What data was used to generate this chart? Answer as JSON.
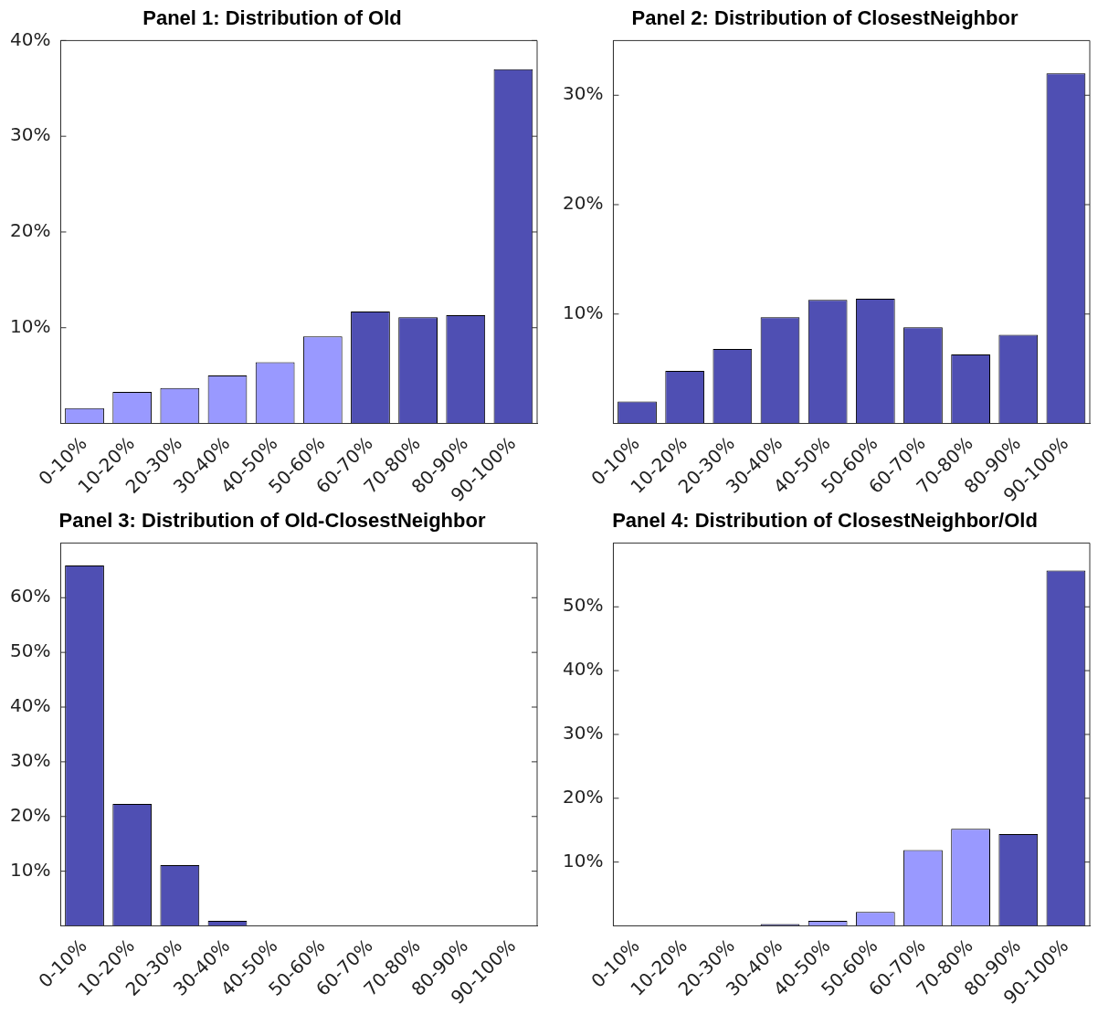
{
  "chart_data": [
    {
      "type": "bar",
      "title": "Panel 1: Distribution of Old",
      "categories": [
        "0-10%",
        "10-20%",
        "20-30%",
        "30-40%",
        "40-50%",
        "50-60%",
        "60-70%",
        "70-80%",
        "80-90%",
        "90-100%"
      ],
      "values": [
        1.6,
        3.3,
        3.7,
        5.0,
        6.4,
        9.1,
        11.7,
        11.1,
        11.3,
        37.0
      ],
      "colors": [
        "#9999ff",
        "#9999ff",
        "#9999ff",
        "#9999ff",
        "#9999ff",
        "#9999ff",
        "#4f4fb3",
        "#4f4fb3",
        "#4f4fb3",
        "#4f4fb3"
      ],
      "ylim": [
        0,
        40
      ],
      "yticks": [
        {
          "value": 10,
          "label": "10%"
        },
        {
          "value": 20,
          "label": "20%"
        },
        {
          "value": 30,
          "label": "30%"
        },
        {
          "value": 40,
          "label": "40%"
        }
      ]
    },
    {
      "type": "bar",
      "title": "Panel 2: Distribution of ClosestNeighbor",
      "categories": [
        "0-10%",
        "10-20%",
        "20-30%",
        "30-40%",
        "40-50%",
        "50-60%",
        "60-70%",
        "70-80%",
        "80-90%",
        "90-100%"
      ],
      "values": [
        2.0,
        4.8,
        6.8,
        9.7,
        11.3,
        11.4,
        8.8,
        6.3,
        8.1,
        32.0
      ],
      "colors": [
        "#4f4fb3",
        "#4f4fb3",
        "#4f4fb3",
        "#4f4fb3",
        "#4f4fb3",
        "#4f4fb3",
        "#4f4fb3",
        "#4f4fb3",
        "#4f4fb3",
        "#4f4fb3"
      ],
      "ylim": [
        0,
        35
      ],
      "yticks": [
        {
          "value": 10,
          "label": "10%"
        },
        {
          "value": 20,
          "label": "20%"
        },
        {
          "value": 30,
          "label": "30%"
        }
      ]
    },
    {
      "type": "bar",
      "title": "Panel 3: Distribution of Old-ClosestNeighbor",
      "categories": [
        "0-10%",
        "10-20%",
        "20-30%",
        "30-40%",
        "40-50%",
        "50-60%",
        "60-70%",
        "70-80%",
        "80-90%",
        "90-100%"
      ],
      "values": [
        65.9,
        22.3,
        11.1,
        0.9,
        0,
        0,
        0,
        0,
        0,
        0
      ],
      "colors": [
        "#4f4fb3",
        "#4f4fb3",
        "#4f4fb3",
        "#4f4fb3",
        "#4f4fb3",
        "#4f4fb3",
        "#4f4fb3",
        "#4f4fb3",
        "#4f4fb3",
        "#4f4fb3"
      ],
      "ylim": [
        0,
        70
      ],
      "yticks": [
        {
          "value": 10,
          "label": "10%"
        },
        {
          "value": 20,
          "label": "20%"
        },
        {
          "value": 30,
          "label": "30%"
        },
        {
          "value": 40,
          "label": "40%"
        },
        {
          "value": 50,
          "label": "50%"
        },
        {
          "value": 60,
          "label": "60%"
        }
      ]
    },
    {
      "type": "bar",
      "title": "Panel 4: Distribution of ClosestNeighbor/Old",
      "categories": [
        "0-10%",
        "10-20%",
        "20-30%",
        "30-40%",
        "40-50%",
        "50-60%",
        "60-70%",
        "70-80%",
        "80-90%",
        "90-100%"
      ],
      "values": [
        0,
        0,
        0,
        0.3,
        0.8,
        2.2,
        11.9,
        15.2,
        14.4,
        55.7
      ],
      "colors": [
        "#4f4fb3",
        "#4f4fb3",
        "#4f4fb3",
        "#4f4fb3",
        "#9999ff",
        "#9999ff",
        "#9999ff",
        "#9999ff",
        "#4f4fb3",
        "#4f4fb3"
      ],
      "ylim": [
        0,
        60
      ],
      "yticks": [
        {
          "value": 10,
          "label": "10%"
        },
        {
          "value": 20,
          "label": "20%"
        },
        {
          "value": 30,
          "label": "30%"
        },
        {
          "value": 40,
          "label": "40%"
        },
        {
          "value": 50,
          "label": "50%"
        }
      ]
    }
  ]
}
